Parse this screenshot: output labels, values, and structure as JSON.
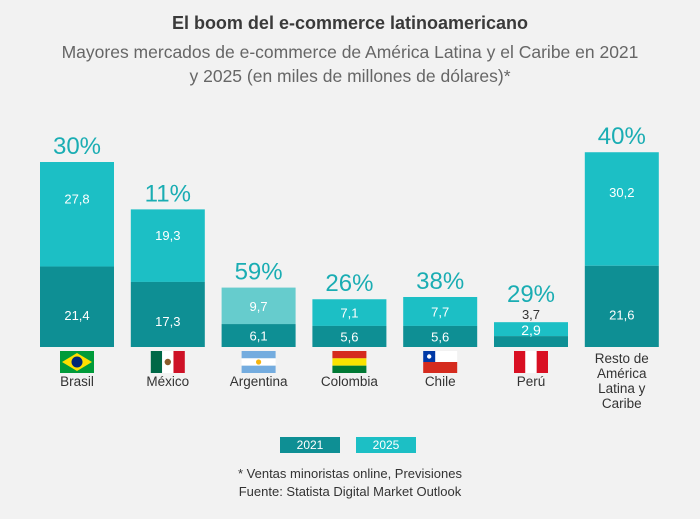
{
  "colors": {
    "c2021": "#0e8f94",
    "c2025": "#1cbfc5",
    "c2025_light": "#66cccd",
    "pct": "#1aadb3",
    "background": "#f2f2f2"
  },
  "chart_data": {
    "type": "bar",
    "stacked": true,
    "title": "El boom del e-commerce latinoamericano",
    "subtitle": "Mayores mercados de e-commerce de América Latina y el Caribe en 2021 y 2025 (en miles de millones de dólares)*",
    "categories": [
      "Brasil",
      "México",
      "Argentina",
      "Colombia",
      "Chile",
      "Perú",
      "Resto de América Latina y Caribe"
    ],
    "category_lines": [
      [
        "Brasil"
      ],
      [
        "México"
      ],
      [
        "Argentina"
      ],
      [
        "Colombia"
      ],
      [
        "Chile"
      ],
      [
        "Perú"
      ],
      [
        "Resto de",
        "América",
        "Latina y",
        "Caribe"
      ]
    ],
    "flags": [
      "brazil-flag-icon",
      "mexico-flag-icon",
      "argentina-flag-icon",
      "colombia-flag-icon",
      "chile-flag-icon",
      "peru-flag-icon",
      null
    ],
    "series": [
      {
        "name": "2021",
        "values": [
          21.4,
          17.3,
          6.1,
          5.6,
          5.6,
          2.9,
          21.6
        ],
        "labels": [
          "21,4",
          "17,3",
          "6,1",
          "5,6",
          "5,6",
          "2,9",
          "21,6"
        ]
      },
      {
        "name": "2025",
        "values": [
          27.8,
          19.3,
          9.7,
          7.1,
          7.7,
          3.7,
          30.2
        ],
        "labels": [
          "27,8",
          "19,3",
          "9,7",
          "7,1",
          "7,7",
          "3,7",
          "30,2"
        ]
      }
    ],
    "growth_labels": [
      "30%",
      "11%",
      "59%",
      "26%",
      "38%",
      "29%",
      "40%"
    ],
    "legend": [
      "2021",
      "2025"
    ],
    "legend_position": "bottom",
    "ylim": [
      0,
      52
    ]
  },
  "footnotes": {
    "note": "* Ventas minoristas online, Previsiones",
    "source": "Fuente: Statista Digital Market Outlook"
  }
}
